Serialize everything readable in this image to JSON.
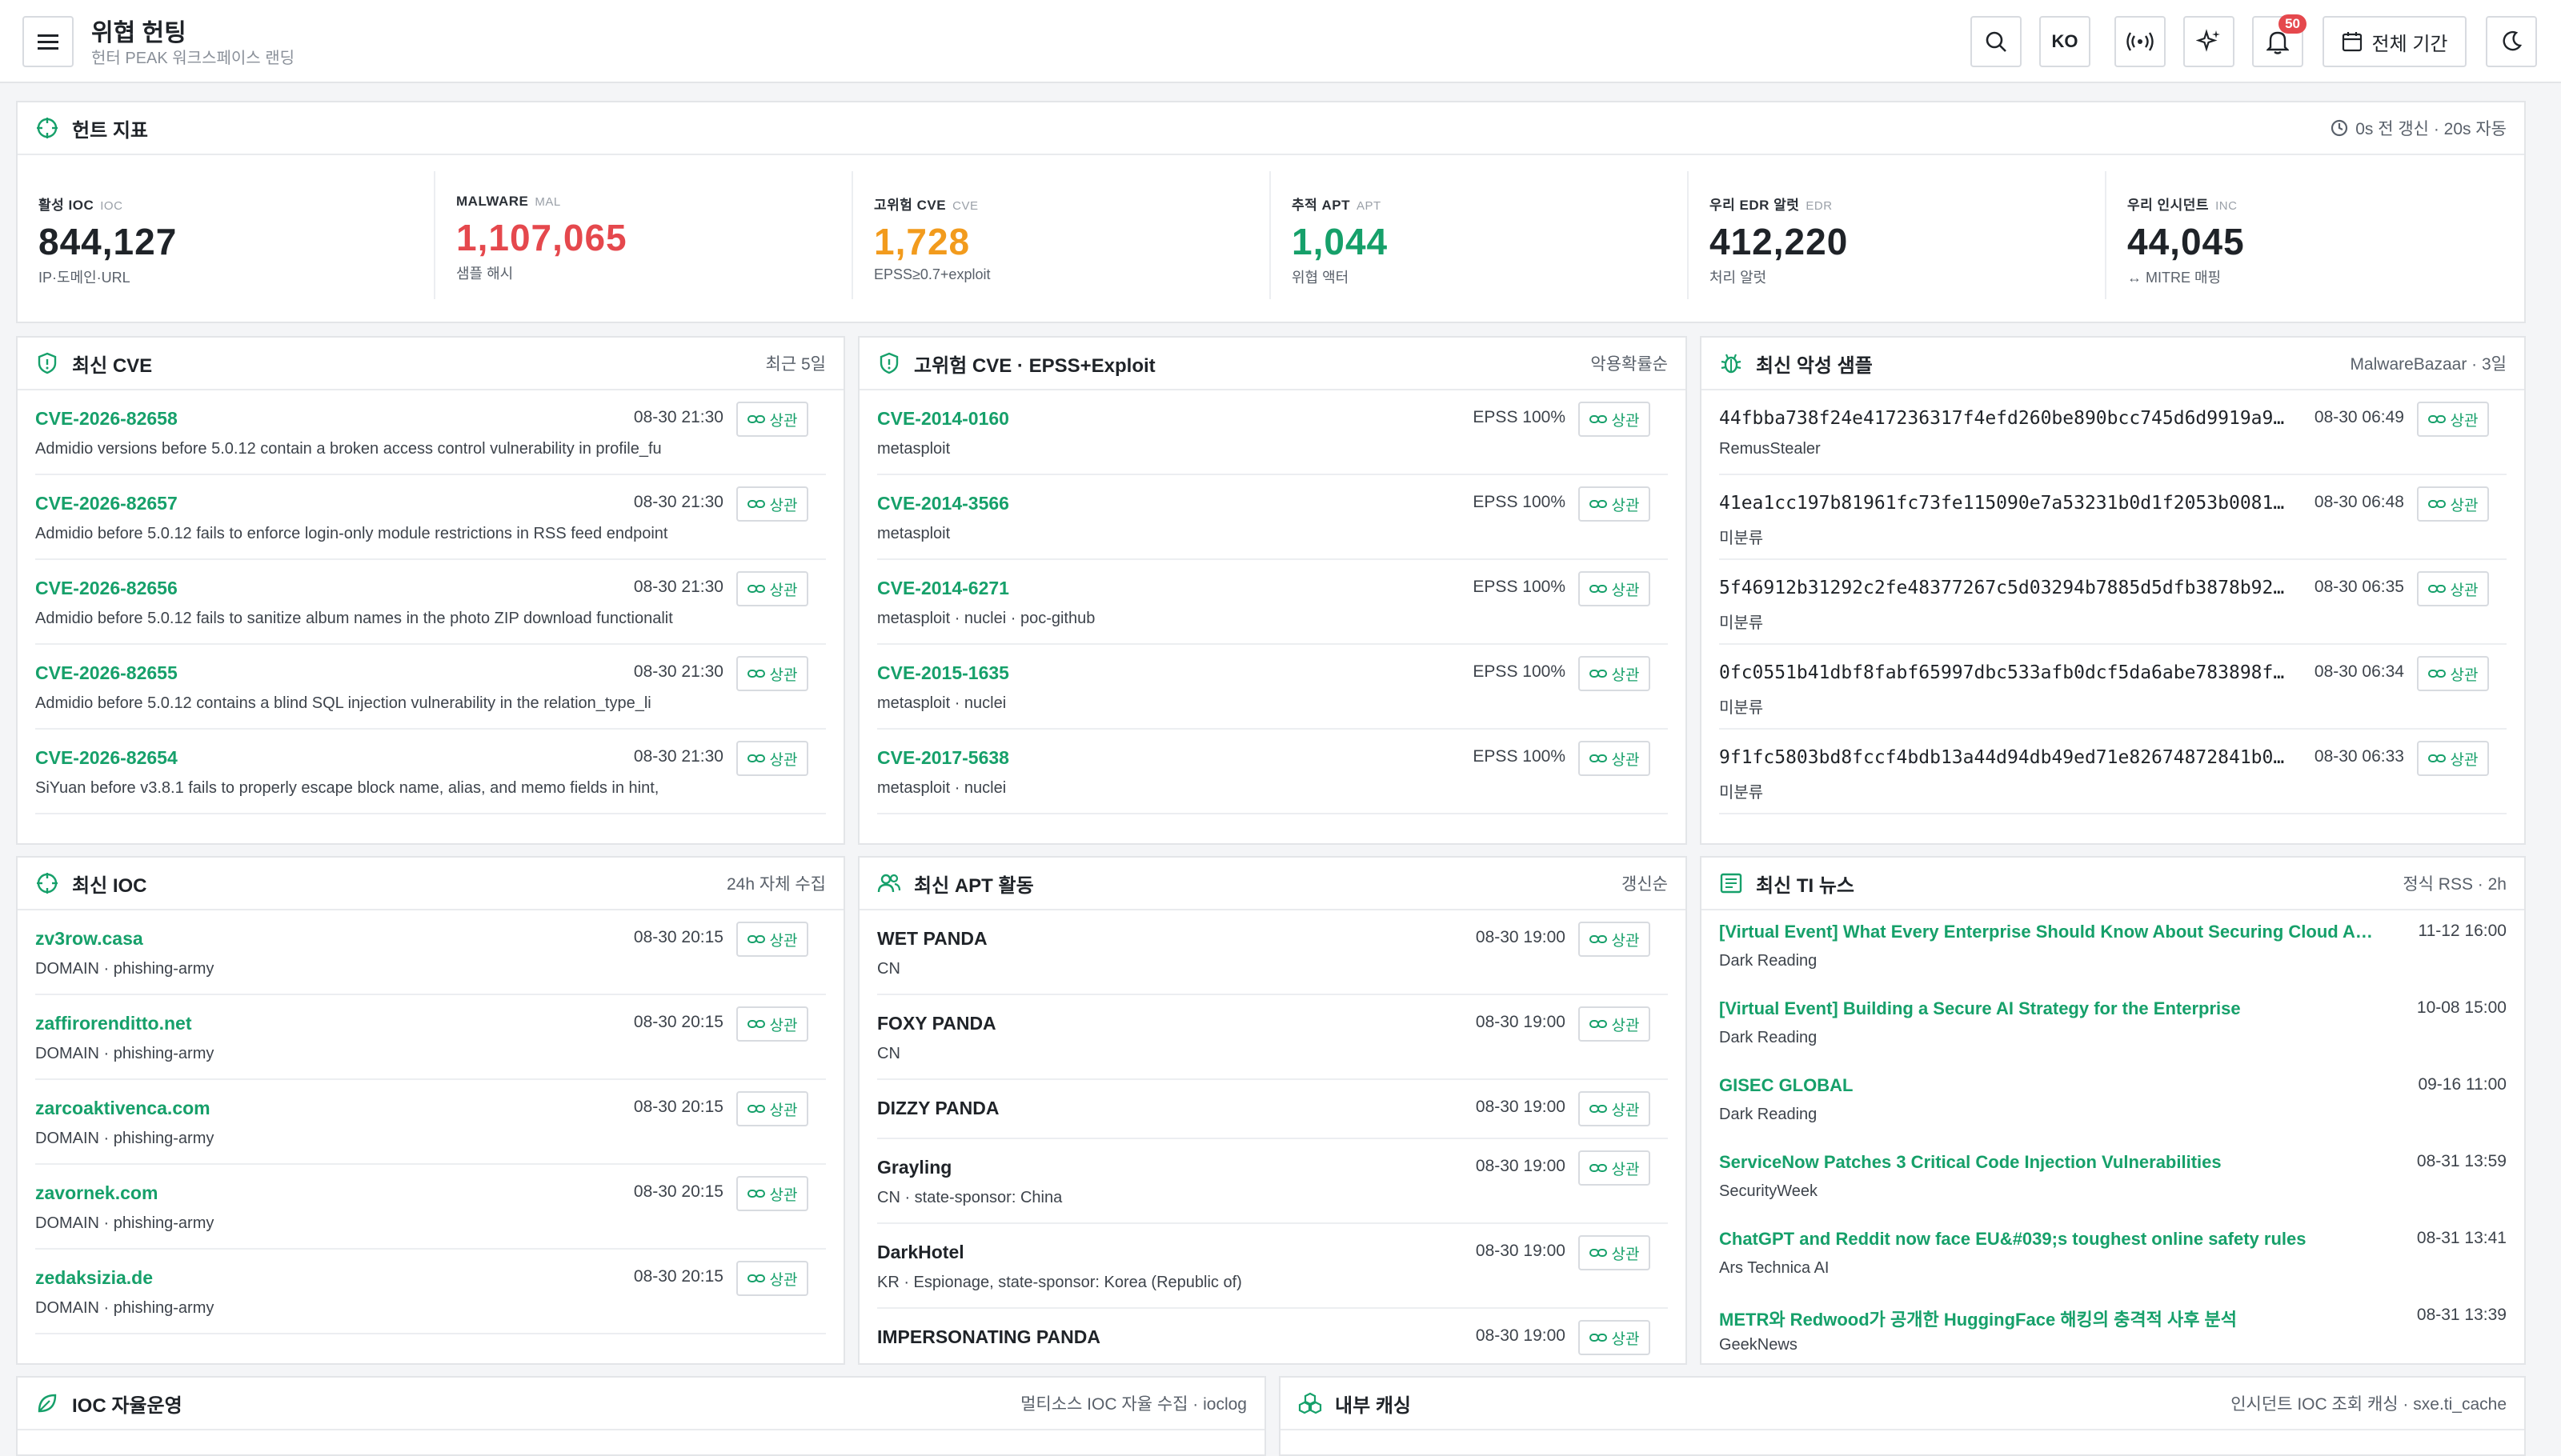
{
  "header": {
    "title": "위협 헌팅",
    "subtitle": "헌터 PEAK 워크스페이스 랜딩",
    "lang_label": "KO",
    "notifications_count": "50",
    "period_label": "전체 기간"
  },
  "colors": {
    "accent": "#16a06a",
    "malware": "#e5484d",
    "cve": "#f29b1d"
  },
  "metrics_panel": {
    "title": "헌트 지표",
    "meta": "0s 전 갱신 · 20s 자동",
    "items": [
      {
        "label": "활성 IOC",
        "tag": "IOC",
        "value": "844,127",
        "sub": "IP·도메인·URL",
        "color": "#1f2328"
      },
      {
        "label": "MALWARE",
        "tag": "MAL",
        "value": "1,107,065",
        "sub": "샘플 해시",
        "color": "#e5484d"
      },
      {
        "label": "고위험 CVE",
        "tag": "CVE",
        "value": "1,728",
        "sub": "EPSS≥0.7+exploit",
        "color": "#f29b1d"
      },
      {
        "label": "추적 APT",
        "tag": "APT",
        "value": "1,044",
        "sub": "위협 액터",
        "color": "#16a06a"
      },
      {
        "label": "우리 EDR 알럿",
        "tag": "EDR",
        "value": "412,220",
        "sub": "처리 알럿",
        "color": "#1f2328"
      },
      {
        "label": "우리 인시던트",
        "tag": "INC",
        "value": "44,045",
        "sub": "↔ MITRE 매핑",
        "color": "#1f2328"
      }
    ]
  },
  "relate_label": "상관",
  "recent_cve": {
    "title": "최신 CVE",
    "meta": "최근 5일",
    "items": [
      {
        "id": "CVE-2026-82658",
        "time": "08-30 21:30",
        "desc": "Admidio versions before 5.0.12 contain a broken access control vulnerability in profile_fu"
      },
      {
        "id": "CVE-2026-82657",
        "time": "08-30 21:30",
        "desc": "Admidio before 5.0.12 fails to enforce login-only module restrictions in RSS feed endpoint"
      },
      {
        "id": "CVE-2026-82656",
        "time": "08-30 21:30",
        "desc": "Admidio before 5.0.12 fails to sanitize album names in the photo ZIP download functionalit"
      },
      {
        "id": "CVE-2026-82655",
        "time": "08-30 21:30",
        "desc": "Admidio before 5.0.12 contains a blind SQL injection vulnerability in the relation_type_li"
      },
      {
        "id": "CVE-2026-82654",
        "time": "08-30 21:30",
        "desc": "SiYuan before v3.8.1 fails to properly escape block name, alias, and memo fields in hint,"
      }
    ]
  },
  "high_cve": {
    "title": "고위험 CVE · EPSS+Exploit",
    "meta": "악용확률순",
    "items": [
      {
        "id": "CVE-2014-0160",
        "epss": "EPSS 100%",
        "desc": "metasploit"
      },
      {
        "id": "CVE-2014-3566",
        "epss": "EPSS 100%",
        "desc": "metasploit"
      },
      {
        "id": "CVE-2014-6271",
        "epss": "EPSS 100%",
        "desc": "metasploit · nuclei · poc-github"
      },
      {
        "id": "CVE-2015-1635",
        "epss": "EPSS 100%",
        "desc": "metasploit · nuclei"
      },
      {
        "id": "CVE-2017-5638",
        "epss": "EPSS 100%",
        "desc": "metasploit · nuclei"
      }
    ]
  },
  "malware": {
    "title": "최신 악성 샘플",
    "meta": "MalwareBazaar · 3일",
    "items": [
      {
        "hash": "44fbba738f24e417236317f4efd260be890bcc745d6d9919a9…",
        "time": "08-30 06:49",
        "family": "RemusStealer"
      },
      {
        "hash": "41ea1cc197b81961fc73fe115090e7a53231b0d1f2053b0081…",
        "time": "08-30 06:48",
        "family": "미분류"
      },
      {
        "hash": "5f46912b31292c2fe48377267c5d03294b7885d5dfb3878b92…",
        "time": "08-30 06:35",
        "family": "미분류"
      },
      {
        "hash": "0fc0551b41dbf8fabf65997dbc533afb0dcf5da6abe783898f…",
        "time": "08-30 06:34",
        "family": "미분류"
      },
      {
        "hash": "9f1fc5803bd8fccf4bdb13a44d94db49ed71e82674872841b0…",
        "time": "08-30 06:33",
        "family": "미분류"
      }
    ]
  },
  "recent_ioc": {
    "title": "최신 IOC",
    "meta": "24h 자체 수집",
    "items": [
      {
        "value": "zv3row.casa",
        "time": "08-30 20:15",
        "desc": "DOMAIN · phishing-army"
      },
      {
        "value": "zaffirorenditto.net",
        "time": "08-30 20:15",
        "desc": "DOMAIN · phishing-army"
      },
      {
        "value": "zarcoaktivenca.com",
        "time": "08-30 20:15",
        "desc": "DOMAIN · phishing-army"
      },
      {
        "value": "zavornek.com",
        "time": "08-30 20:15",
        "desc": "DOMAIN · phishing-army"
      },
      {
        "value": "zedaksizia.de",
        "time": "08-30 20:15",
        "desc": "DOMAIN · phishing-army"
      }
    ]
  },
  "apt": {
    "title": "최신 APT 활동",
    "meta": "갱신순",
    "items": [
      {
        "name": "WET PANDA",
        "time": "08-30 19:00",
        "desc": "CN"
      },
      {
        "name": "FOXY PANDA",
        "time": "08-30 19:00",
        "desc": "CN"
      },
      {
        "name": "DIZZY PANDA",
        "time": "08-30 19:00",
        "desc": ""
      },
      {
        "name": "Grayling",
        "time": "08-30 19:00",
        "desc": "CN · state-sponsor: China"
      },
      {
        "name": "DarkHotel",
        "time": "08-30 19:00",
        "desc": "KR · Espionage, state-sponsor: Korea (Republic of)"
      },
      {
        "name": "IMPERSONATING PANDA",
        "time": "08-30 19:00",
        "desc": ""
      }
    ]
  },
  "news": {
    "title": "최신 TI 뉴스",
    "meta": "정식 RSS · 2h",
    "items": [
      {
        "title": "[Virtual Event] What Every Enterprise Should Know About Securing Cloud A…",
        "time": "11-12 16:00",
        "source": "Dark Reading"
      },
      {
        "title": "[Virtual Event] Building a Secure AI Strategy for the Enterprise",
        "time": "10-08 15:00",
        "source": "Dark Reading"
      },
      {
        "title": "GISEC GLOBAL",
        "time": "09-16 11:00",
        "source": "Dark Reading"
      },
      {
        "title": "ServiceNow Patches 3 Critical Code Injection Vulnerabilities",
        "time": "08-31 13:59",
        "source": "SecurityWeek"
      },
      {
        "title": "ChatGPT and Reddit now face EU&#039;s toughest online safety rules",
        "time": "08-31 13:41",
        "source": "Ars Technica AI"
      },
      {
        "title": "METR와 Redwood가 공개한 HuggingFace 해킹의 충격적 사후 분석",
        "time": "08-31 13:39",
        "source": "GeekNews"
      }
    ]
  },
  "ioc_ops": {
    "title": "IOC 자율운영",
    "meta": "멀티소스 IOC 자율 수집 · ioclog"
  },
  "cache": {
    "title": "내부 캐싱",
    "meta": "인시던트 IOC 조회 캐싱 · sxe.ti_cache"
  }
}
